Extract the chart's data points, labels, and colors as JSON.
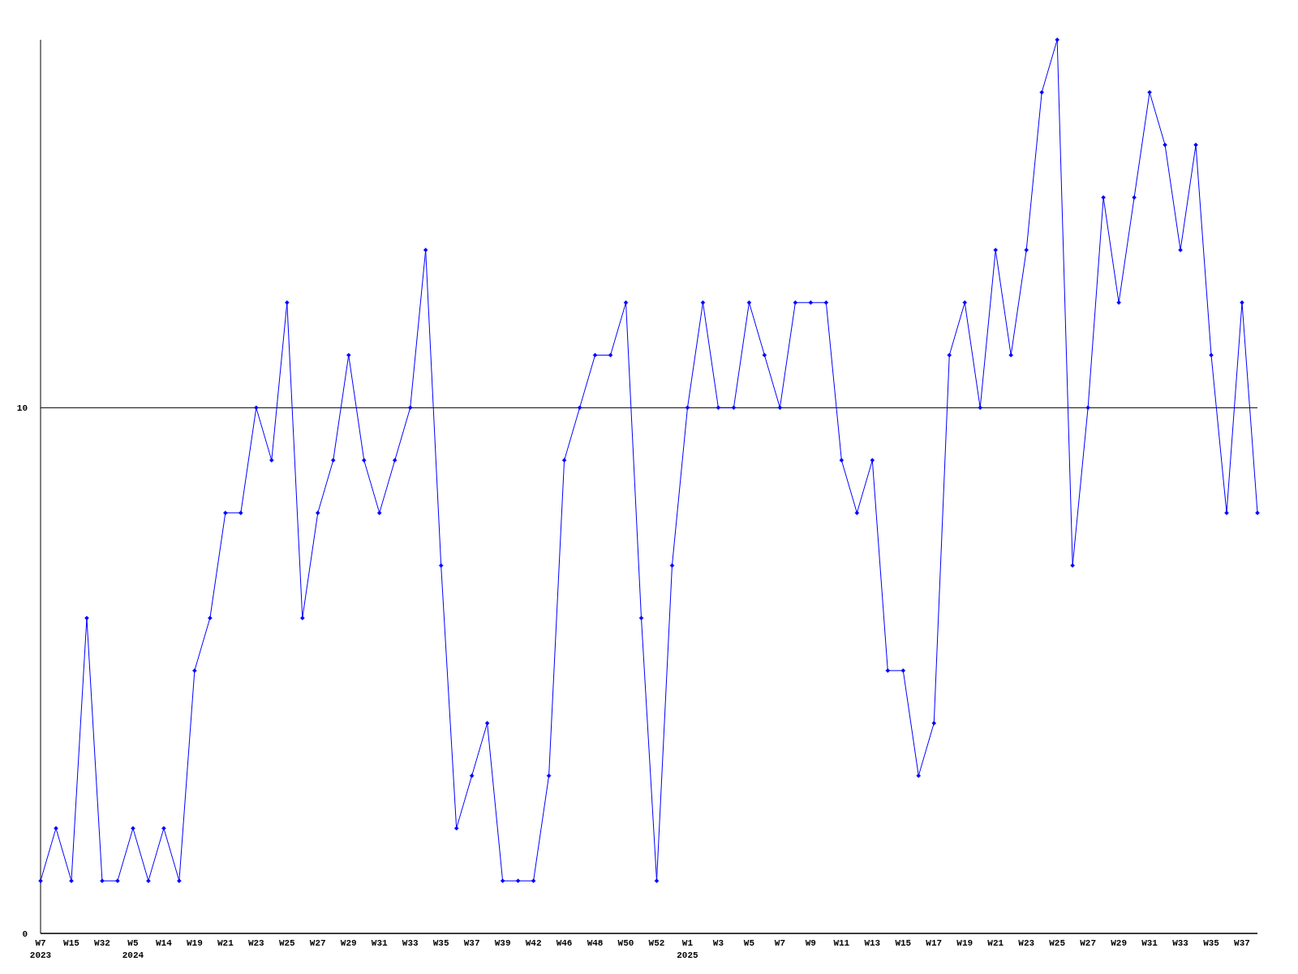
{
  "chart_data": {
    "type": "line",
    "categories": [
      "W7\n2023",
      null,
      "W15",
      null,
      "W32",
      null,
      "W5\n2024",
      null,
      "W14",
      null,
      "W19",
      null,
      "W21",
      null,
      "W23",
      null,
      "W25",
      null,
      "W27",
      null,
      "W29",
      null,
      "W31",
      null,
      "W33",
      null,
      "W35",
      null,
      "W37",
      null,
      "W39",
      null,
      "W42",
      null,
      "W46",
      null,
      "W48",
      null,
      "W50",
      null,
      "W52",
      null,
      "W1\n2025",
      null,
      "W3",
      null,
      "W5",
      null,
      "W7",
      null,
      "W9",
      null,
      "W11",
      null,
      "W13",
      null,
      "W15",
      null,
      "W17",
      null,
      "W19",
      null,
      "W21",
      null,
      "W23",
      null,
      "W25",
      null,
      "W27",
      null,
      "W29",
      null,
      "W31",
      null,
      "W33",
      null,
      "W35",
      null,
      "W37",
      null
    ],
    "series": [
      {
        "color": "#0000ff",
        "values": [
          1,
          2,
          1,
          6,
          1,
          1,
          2,
          1,
          2,
          1,
          5,
          6,
          8,
          8,
          10,
          9,
          12,
          6,
          8,
          9,
          11,
          9,
          8,
          9,
          10,
          13,
          7,
          2,
          3,
          4,
          1,
          1,
          1,
          3,
          9,
          10,
          11,
          11,
          12,
          6,
          1,
          7,
          10,
          12,
          10,
          10,
          12,
          11,
          10,
          12,
          12,
          12,
          9,
          8,
          9,
          5,
          5,
          3,
          4,
          11,
          12,
          10,
          13,
          11,
          13,
          16,
          17,
          7,
          10,
          14,
          12,
          14,
          16,
          15,
          13,
          15,
          11,
          8,
          12,
          8
        ]
      }
    ],
    "ylim": [
      0,
      17
    ],
    "yticks": [
      0,
      10
    ],
    "grid": "y",
    "marker": "diamond",
    "line_style": "solid"
  }
}
